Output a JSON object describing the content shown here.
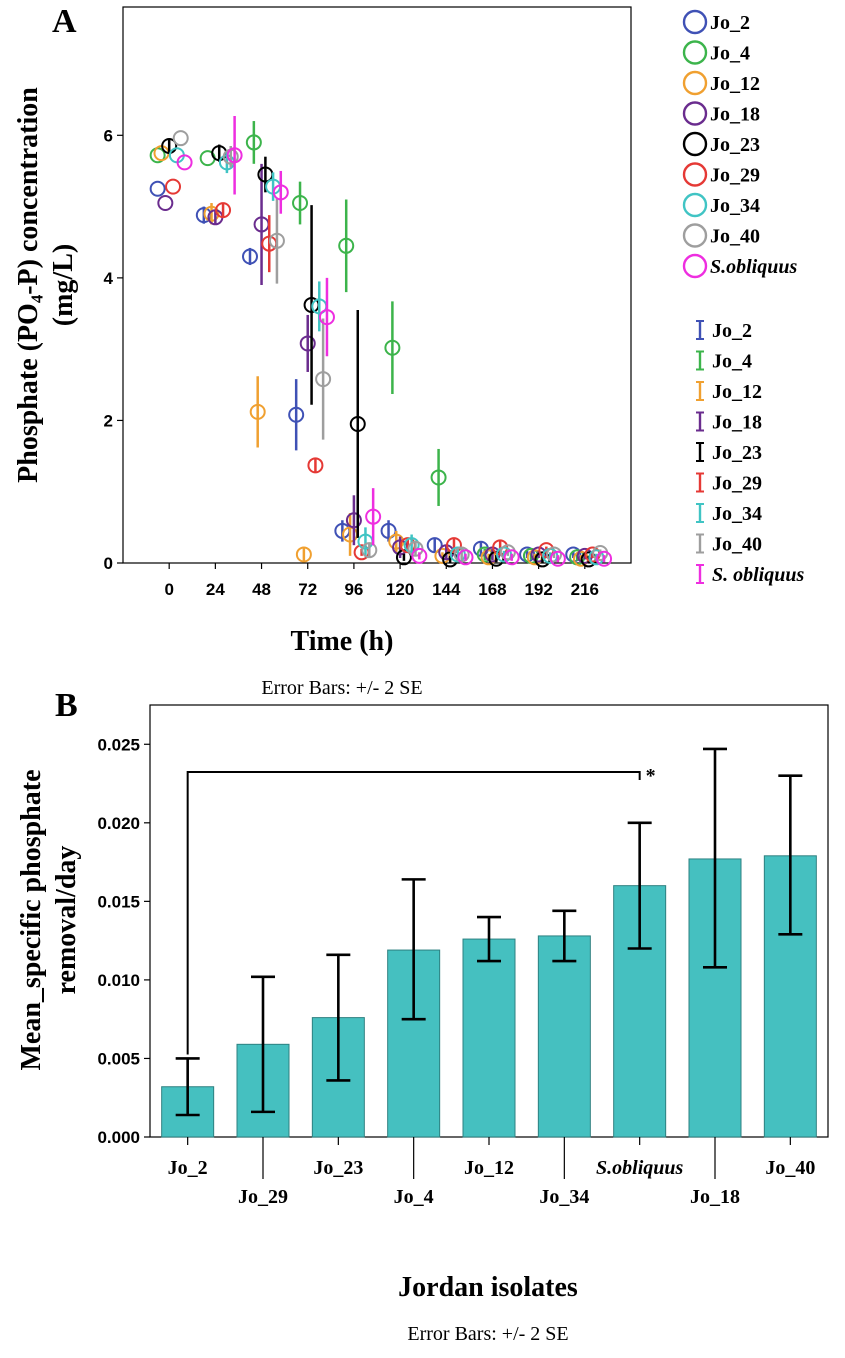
{
  "chart_data": [
    {
      "panel": "A",
      "type": "scatter",
      "xlabel": "Time (h)",
      "ylabel_line1": "Phosphate (PO₄-P) concentration",
      "ylabel_line2": "(mg/L)",
      "xticks": [
        "0",
        "24",
        "48",
        "72",
        "96",
        "120",
        "144",
        "168",
        "192",
        "216"
      ],
      "yticks": [
        "0",
        "2",
        "4",
        "6"
      ],
      "xlim": [
        -24,
        240
      ],
      "ylim": [
        0,
        7.8
      ],
      "note": "Error Bars: +/- 2 SE",
      "legend_markers_title": "",
      "legend_bars_title": "",
      "series": [
        {
          "name": "Jo_2",
          "bar_name": "Jo_2",
          "color": "#3f51b5",
          "points": [
            [
              -6,
              5.25,
              0
            ],
            [
              18,
              4.88,
              0.12
            ],
            [
              42,
              4.3,
              0.12
            ],
            [
              66,
              2.08,
              0.5
            ],
            [
              90,
              0.45,
              0.15
            ],
            [
              114,
              0.45,
              0.15
            ],
            [
              138,
              0.25,
              0.1
            ],
            [
              162,
              0.2,
              0.1
            ],
            [
              186,
              0.12,
              0.05
            ],
            [
              210,
              0.12,
              0.05
            ]
          ]
        },
        {
          "name": "Jo_4",
          "bar_name": "Jo_4",
          "color": "#3cb44b",
          "points": [
            [
              -6,
              5.72,
              0
            ],
            [
              20,
              5.68,
              0
            ],
            [
              44,
              5.9,
              0.3
            ],
            [
              68,
              5.05,
              0.3
            ],
            [
              92,
              4.45,
              0.65
            ],
            [
              116,
              3.02,
              0.65
            ],
            [
              140,
              1.2,
              0.4
            ],
            [
              164,
              0.12,
              0.08
            ],
            [
              188,
              0.1,
              0.05
            ],
            [
              212,
              0.08,
              0.05
            ]
          ]
        },
        {
          "name": "Jo_12",
          "bar_name": "Jo_12",
          "color": "#f0a030",
          "points": [
            [
              -4,
              5.75,
              0
            ],
            [
              22,
              4.9,
              0.15
            ],
            [
              46,
              2.12,
              0.5
            ],
            [
              70,
              0.12,
              0.1
            ],
            [
              94,
              0.4,
              0.3
            ],
            [
              118,
              0.3,
              0.15
            ],
            [
              142,
              0.1,
              0.05
            ],
            [
              166,
              0.08,
              0.05
            ],
            [
              190,
              0.08,
              0.05
            ],
            [
              214,
              0.06,
              0.05
            ]
          ]
        },
        {
          "name": "Jo_18",
          "bar_name": "Jo_18",
          "color": "#6a2c8e",
          "points": [
            [
              -2,
              5.05,
              0
            ],
            [
              24,
              4.85,
              0.1
            ],
            [
              48,
              4.75,
              0.85
            ],
            [
              72,
              3.08,
              0.4
            ],
            [
              96,
              0.6,
              0.35
            ],
            [
              120,
              0.22,
              0.15
            ],
            [
              144,
              0.15,
              0.1
            ],
            [
              168,
              0.12,
              0.08
            ],
            [
              192,
              0.12,
              0.05
            ],
            [
              216,
              0.1,
              0.05
            ]
          ]
        },
        {
          "name": "Jo_23",
          "bar_name": "Jo_23",
          "color": "#000000",
          "points": [
            [
              0,
              5.85,
              0.1
            ],
            [
              26,
              5.75,
              0.12
            ],
            [
              50,
              5.45,
              0.25
            ],
            [
              74,
              3.62,
              1.4
            ],
            [
              98,
              1.95,
              1.6
            ],
            [
              122,
              0.08,
              0.05
            ],
            [
              146,
              0.05,
              0.05
            ],
            [
              170,
              0.06,
              0.05
            ],
            [
              194,
              0.05,
              0.05
            ],
            [
              218,
              0.05,
              0.05
            ]
          ]
        },
        {
          "name": "Jo_29",
          "bar_name": "Jo_29",
          "color": "#e53935",
          "points": [
            [
              2,
              5.28,
              0
            ],
            [
              28,
              4.95,
              0.1
            ],
            [
              52,
              4.48,
              0.4
            ],
            [
              76,
              1.37,
              0.1
            ],
            [
              100,
              0.15,
              0.05
            ],
            [
              124,
              0.25,
              0.1
            ],
            [
              148,
              0.25,
              0.1
            ],
            [
              172,
              0.22,
              0.1
            ],
            [
              196,
              0.18,
              0.05
            ],
            [
              220,
              0.12,
              0.05
            ]
          ]
        },
        {
          "name": "Jo_34",
          "bar_name": "Jo_34",
          "color": "#40c4c4",
          "points": [
            [
              4,
              5.72,
              0
            ],
            [
              30,
              5.62,
              0.15
            ],
            [
              54,
              5.28,
              0.2
            ],
            [
              78,
              3.6,
              0.35
            ],
            [
              102,
              0.3,
              0.2
            ],
            [
              126,
              0.25,
              0.15
            ],
            [
              150,
              0.12,
              0.08
            ],
            [
              174,
              0.12,
              0.05
            ],
            [
              198,
              0.1,
              0.05
            ],
            [
              222,
              0.08,
              0.05
            ]
          ]
        },
        {
          "name": "Jo_40",
          "bar_name": "Jo_40",
          "color": "#9e9e9e",
          "points": [
            [
              6,
              5.96,
              0
            ],
            [
              32,
              5.7,
              0.15
            ],
            [
              56,
              4.52,
              0.6
            ],
            [
              80,
              2.58,
              0.85
            ],
            [
              104,
              0.18,
              0.1
            ],
            [
              128,
              0.2,
              0.1
            ],
            [
              152,
              0.12,
              0.08
            ],
            [
              176,
              0.15,
              0.05
            ],
            [
              200,
              0.12,
              0.05
            ],
            [
              224,
              0.14,
              0.05
            ]
          ]
        },
        {
          "name": "S.obliquus",
          "bar_name": "S. obliquus",
          "color": "#ee2ee0",
          "points": [
            [
              8,
              5.62,
              0
            ],
            [
              34,
              5.72,
              0.55
            ],
            [
              58,
              5.2,
              0.3
            ],
            [
              82,
              3.45,
              0.55
            ],
            [
              106,
              0.65,
              0.4
            ],
            [
              130,
              0.1,
              0.05
            ],
            [
              154,
              0.08,
              0.05
            ],
            [
              178,
              0.08,
              0.05
            ],
            [
              202,
              0.06,
              0.05
            ],
            [
              226,
              0.06,
              0.05
            ]
          ]
        }
      ]
    },
    {
      "panel": "B",
      "type": "bar",
      "xlabel": "Jordan isolates",
      "ylabel_line1": "Mean_specific phosphate",
      "ylabel_line2": "removal/day",
      "ylim": [
        0,
        0.0275
      ],
      "yticks": [
        "0.000",
        "0.005",
        "0.010",
        "0.015",
        "0.020",
        "0.025"
      ],
      "note": "Error Bars: +/- 2 SE",
      "bar_color": "#45c0c0",
      "categories": [
        "Jo_2",
        "Jo_29",
        "Jo_23",
        "Jo_4",
        "Jo_12",
        "Jo_34",
        "S.obliquus",
        "Jo_18",
        "Jo_40"
      ],
      "values": [
        0.0032,
        0.0059,
        0.0076,
        0.0119,
        0.0126,
        0.0128,
        0.016,
        0.0177,
        0.0179
      ],
      "err_low": [
        0.0014,
        0.0016,
        0.0036,
        0.0075,
        0.0112,
        0.0112,
        0.012,
        0.0108,
        0.0129
      ],
      "err_high": [
        0.005,
        0.0102,
        0.0116,
        0.0164,
        0.014,
        0.0144,
        0.02,
        0.0247,
        0.023
      ],
      "significance": {
        "from": "Jo_2",
        "to": "S.obliquus",
        "label": "*"
      }
    }
  ]
}
